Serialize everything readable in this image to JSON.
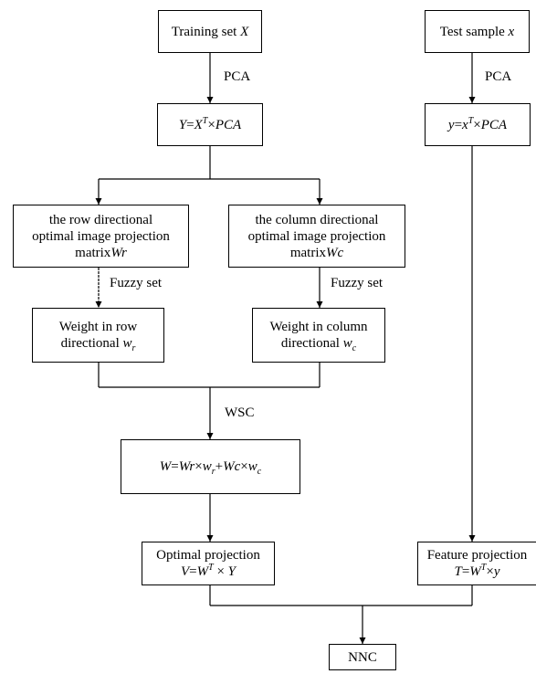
{
  "nodes": {
    "training_set": {
      "text": "Training set ",
      "var": "X"
    },
    "test_sample": {
      "text": "Test sample ",
      "var": "x"
    },
    "y_train": {
      "lhs": "Y",
      "eq": "=",
      "base": "X",
      "sup": "T",
      "times": "×",
      "rhs": "PCA"
    },
    "y_test": {
      "lhs": "y",
      "eq": "=",
      "base": "x",
      "sup": "T",
      "times": "×",
      "rhs": "PCA"
    },
    "row_matrix": {
      "line1": "the row directional",
      "line2": "optimal image projection",
      "line3": "matrix",
      "var": "Wr"
    },
    "col_matrix": {
      "line1": "the column directional",
      "line2": "optimal image projection",
      "line3": "matrix",
      "var": "Wc"
    },
    "row_weight": {
      "line1": "Weight in row",
      "line2": "directional ",
      "var": "w",
      "sub": "r"
    },
    "col_weight": {
      "line1": "Weight in column",
      "line2": "directional ",
      "var": "w",
      "sub": "c"
    },
    "w_combine": {
      "w": "W",
      "eq": "=",
      "wr": "Wr",
      "t1": "×",
      "w1": "w",
      "s1": "r",
      "plus": "+",
      "wc": "Wc",
      "t2": "×",
      "w2": "w",
      "s2": "c"
    },
    "optimal_projection": {
      "title": "Optimal projection",
      "lhs": "V",
      "eq": "=",
      "base": "W",
      "sup": "T",
      "times": " × ",
      "rhs": "Y"
    },
    "feature_projection": {
      "title": "Feature projection",
      "lhs": "T",
      "eq": "=",
      "base": "W",
      "sup": "T",
      "times": "×",
      "rhs": "y"
    },
    "nnc": {
      "text": "NNC"
    }
  },
  "edge_labels": {
    "pca_left": "PCA",
    "pca_right": "PCA",
    "fuzzy_left": "Fuzzy set",
    "fuzzy_right": "Fuzzy set",
    "wsc": "WSC"
  }
}
